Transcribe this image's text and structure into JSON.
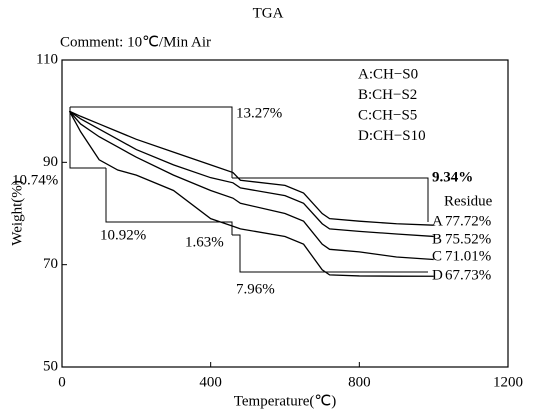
{
  "chart_data": {
    "type": "line",
    "title": "TGA",
    "subtitle": "Comment: 10℃/Min Air",
    "x_label": "Temperature(℃)",
    "y_label": "Weight(%)",
    "x": [
      20,
      50,
      100,
      150,
      200,
      300,
      400,
      460,
      480,
      600,
      650,
      700,
      720,
      800,
      900,
      1000
    ],
    "series": [
      {
        "name": "A:CH−S0",
        "color": "#000000",
        "values": [
          100,
          99,
          97.5,
          96,
          94.5,
          92,
          89.5,
          88,
          86.5,
          85.5,
          84,
          80,
          79,
          78.5,
          78,
          77.72
        ]
      },
      {
        "name": "B:CH−S2",
        "color": "#000000",
        "values": [
          100,
          98.5,
          96.5,
          94.5,
          92.5,
          89.5,
          87,
          86,
          85,
          83.5,
          82,
          78,
          77,
          76.5,
          76,
          75.52
        ]
      },
      {
        "name": "C:CH−S5",
        "color": "#000000",
        "values": [
          100,
          97.5,
          95,
          93,
          91,
          87.5,
          84.5,
          83,
          82,
          80,
          78.5,
          74,
          73,
          72.5,
          71.5,
          71.01
        ]
      },
      {
        "name": "D:CH−S10",
        "color": "#000000",
        "values": [
          100,
          96,
          90.5,
          88.5,
          87.5,
          84.5,
          79,
          77.5,
          77,
          75.5,
          74,
          69,
          68,
          67.8,
          67.75,
          67.73
        ]
      }
    ],
    "xlim": [
      0,
      1200
    ],
    "xticks": [
      0,
      400,
      800,
      1200
    ],
    "ylim": [
      50,
      110
    ],
    "yticks": [
      50,
      70,
      90,
      110
    ],
    "annotations": [
      "13.27%",
      "9.34%",
      "10.74%",
      "10.92%",
      "1.63%",
      "7.96%"
    ],
    "residue_title": "Residue",
    "end_letters": [
      "A",
      "B",
      "C",
      "D"
    ],
    "residue_labels": [
      "77.72%",
      "75.52%",
      "71.01%",
      "67.73%"
    ]
  }
}
